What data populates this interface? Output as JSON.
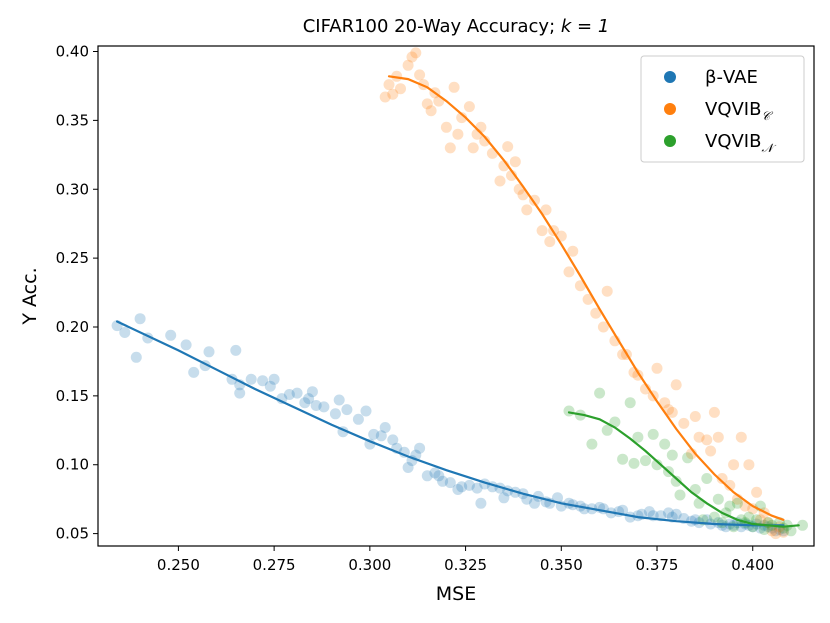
{
  "chart_data": {
    "type": "scatter",
    "title": "CIFAR100 20-Way Accuracy; ",
    "title_math": "k = 1",
    "xlabel": "MSE",
    "ylabel": "Y Acc.",
    "xlim": [
      0.229,
      0.416
    ],
    "ylim": [
      0.041,
      0.404
    ],
    "xticks": [
      0.25,
      0.275,
      0.3,
      0.325,
      0.35,
      0.375,
      0.4
    ],
    "xtick_labels": [
      "0.250",
      "0.275",
      "0.300",
      "0.325",
      "0.350",
      "0.375",
      "0.400"
    ],
    "yticks": [
      0.05,
      0.1,
      0.15,
      0.2,
      0.25,
      0.3,
      0.35,
      0.4
    ],
    "ytick_labels": [
      "0.05",
      "0.10",
      "0.15",
      "0.20",
      "0.25",
      "0.30",
      "0.35",
      "0.40"
    ],
    "legend_position": "top-right",
    "series": [
      {
        "name": "β-VAE",
        "legend_main": "β-VAE",
        "legend_sub": "",
        "color": "#1f77b4",
        "points": [
          [
            0.234,
            0.201
          ],
          [
            0.236,
            0.196
          ],
          [
            0.239,
            0.178
          ],
          [
            0.24,
            0.206
          ],
          [
            0.242,
            0.192
          ],
          [
            0.248,
            0.194
          ],
          [
            0.252,
            0.187
          ],
          [
            0.254,
            0.167
          ],
          [
            0.257,
            0.172
          ],
          [
            0.258,
            0.182
          ],
          [
            0.264,
            0.162
          ],
          [
            0.265,
            0.183
          ],
          [
            0.266,
            0.158
          ],
          [
            0.266,
            0.152
          ],
          [
            0.269,
            0.162
          ],
          [
            0.272,
            0.161
          ],
          [
            0.274,
            0.157
          ],
          [
            0.275,
            0.162
          ],
          [
            0.277,
            0.148
          ],
          [
            0.279,
            0.151
          ],
          [
            0.281,
            0.152
          ],
          [
            0.283,
            0.145
          ],
          [
            0.284,
            0.148
          ],
          [
            0.285,
            0.153
          ],
          [
            0.286,
            0.143
          ],
          [
            0.288,
            0.142
          ],
          [
            0.291,
            0.137
          ],
          [
            0.292,
            0.147
          ],
          [
            0.293,
            0.124
          ],
          [
            0.294,
            0.14
          ],
          [
            0.297,
            0.133
          ],
          [
            0.299,
            0.139
          ],
          [
            0.3,
            0.115
          ],
          [
            0.301,
            0.122
          ],
          [
            0.303,
            0.121
          ],
          [
            0.304,
            0.127
          ],
          [
            0.306,
            0.118
          ],
          [
            0.307,
            0.112
          ],
          [
            0.309,
            0.109
          ],
          [
            0.31,
            0.098
          ],
          [
            0.311,
            0.103
          ],
          [
            0.312,
            0.107
          ],
          [
            0.313,
            0.112
          ],
          [
            0.315,
            0.092
          ],
          [
            0.317,
            0.094
          ],
          [
            0.318,
            0.092
          ],
          [
            0.319,
            0.088
          ],
          [
            0.321,
            0.087
          ],
          [
            0.323,
            0.082
          ],
          [
            0.324,
            0.084
          ],
          [
            0.326,
            0.085
          ],
          [
            0.328,
            0.083
          ],
          [
            0.329,
            0.072
          ],
          [
            0.33,
            0.086
          ],
          [
            0.332,
            0.084
          ],
          [
            0.334,
            0.083
          ],
          [
            0.335,
            0.076
          ],
          [
            0.336,
            0.081
          ],
          [
            0.338,
            0.08
          ],
          [
            0.34,
            0.079
          ],
          [
            0.341,
            0.075
          ],
          [
            0.343,
            0.072
          ],
          [
            0.344,
            0.077
          ],
          [
            0.346,
            0.073
          ],
          [
            0.347,
            0.072
          ],
          [
            0.349,
            0.076
          ],
          [
            0.35,
            0.07
          ],
          [
            0.352,
            0.072
          ],
          [
            0.353,
            0.071
          ],
          [
            0.355,
            0.07
          ],
          [
            0.356,
            0.068
          ],
          [
            0.358,
            0.068
          ],
          [
            0.36,
            0.069
          ],
          [
            0.361,
            0.068
          ],
          [
            0.363,
            0.065
          ],
          [
            0.365,
            0.066
          ],
          [
            0.366,
            0.067
          ],
          [
            0.368,
            0.062
          ],
          [
            0.37,
            0.063
          ],
          [
            0.371,
            0.064
          ],
          [
            0.373,
            0.066
          ],
          [
            0.374,
            0.063
          ],
          [
            0.376,
            0.063
          ],
          [
            0.378,
            0.065
          ],
          [
            0.379,
            0.062
          ],
          [
            0.38,
            0.064
          ],
          [
            0.382,
            0.061
          ],
          [
            0.384,
            0.059
          ],
          [
            0.385,
            0.06
          ],
          [
            0.386,
            0.058
          ],
          [
            0.388,
            0.06
          ],
          [
            0.389,
            0.057
          ],
          [
            0.391,
            0.058
          ],
          [
            0.392,
            0.056
          ],
          [
            0.393,
            0.055
          ],
          [
            0.394,
            0.057
          ],
          [
            0.395,
            0.056
          ],
          [
            0.396,
            0.058
          ],
          [
            0.397,
            0.055
          ],
          [
            0.398,
            0.057
          ],
          [
            0.399,
            0.056
          ],
          [
            0.4,
            0.055
          ],
          [
            0.401,
            0.057
          ],
          [
            0.402,
            0.054
          ],
          [
            0.403,
            0.056
          ],
          [
            0.404,
            0.055
          ],
          [
            0.405,
            0.054
          ],
          [
            0.406,
            0.052
          ],
          [
            0.407,
            0.053
          ],
          [
            0.408,
            0.052
          ]
        ],
        "fit": [
          [
            0.234,
            0.204
          ],
          [
            0.25,
            0.183
          ],
          [
            0.26,
            0.169
          ],
          [
            0.27,
            0.155
          ],
          [
            0.28,
            0.142
          ],
          [
            0.29,
            0.129
          ],
          [
            0.3,
            0.117
          ],
          [
            0.31,
            0.106
          ],
          [
            0.32,
            0.096
          ],
          [
            0.33,
            0.087
          ],
          [
            0.34,
            0.079
          ],
          [
            0.35,
            0.072
          ],
          [
            0.36,
            0.067
          ],
          [
            0.37,
            0.062
          ],
          [
            0.38,
            0.059
          ],
          [
            0.39,
            0.057
          ],
          [
            0.4,
            0.056
          ],
          [
            0.408,
            0.056
          ]
        ]
      },
      {
        "name": "VQVIB_C",
        "legend_main": "VQVIB",
        "legend_sub": "𝒞",
        "color": "#ff7f0e",
        "points": [
          [
            0.304,
            0.367
          ],
          [
            0.305,
            0.376
          ],
          [
            0.306,
            0.369
          ],
          [
            0.307,
            0.382
          ],
          [
            0.308,
            0.373
          ],
          [
            0.31,
            0.39
          ],
          [
            0.311,
            0.396
          ],
          [
            0.312,
            0.399
          ],
          [
            0.313,
            0.383
          ],
          [
            0.314,
            0.376
          ],
          [
            0.315,
            0.362
          ],
          [
            0.316,
            0.357
          ],
          [
            0.317,
            0.37
          ],
          [
            0.318,
            0.364
          ],
          [
            0.32,
            0.345
          ],
          [
            0.321,
            0.33
          ],
          [
            0.322,
            0.374
          ],
          [
            0.323,
            0.34
          ],
          [
            0.324,
            0.352
          ],
          [
            0.326,
            0.36
          ],
          [
            0.327,
            0.33
          ],
          [
            0.328,
            0.34
          ],
          [
            0.329,
            0.345
          ],
          [
            0.33,
            0.335
          ],
          [
            0.332,
            0.326
          ],
          [
            0.334,
            0.306
          ],
          [
            0.335,
            0.317
          ],
          [
            0.336,
            0.331
          ],
          [
            0.337,
            0.31
          ],
          [
            0.338,
            0.32
          ],
          [
            0.339,
            0.3
          ],
          [
            0.34,
            0.296
          ],
          [
            0.341,
            0.285
          ],
          [
            0.343,
            0.292
          ],
          [
            0.345,
            0.27
          ],
          [
            0.346,
            0.285
          ],
          [
            0.347,
            0.262
          ],
          [
            0.348,
            0.27
          ],
          [
            0.35,
            0.266
          ],
          [
            0.352,
            0.24
          ],
          [
            0.353,
            0.255
          ],
          [
            0.355,
            0.23
          ],
          [
            0.357,
            0.22
          ],
          [
            0.359,
            0.21
          ],
          [
            0.361,
            0.2
          ],
          [
            0.362,
            0.226
          ],
          [
            0.364,
            0.19
          ],
          [
            0.366,
            0.18
          ],
          [
            0.367,
            0.18
          ],
          [
            0.369,
            0.167
          ],
          [
            0.37,
            0.165
          ],
          [
            0.372,
            0.155
          ],
          [
            0.374,
            0.15
          ],
          [
            0.375,
            0.17
          ],
          [
            0.377,
            0.145
          ],
          [
            0.378,
            0.14
          ],
          [
            0.379,
            0.138
          ],
          [
            0.38,
            0.158
          ],
          [
            0.382,
            0.13
          ],
          [
            0.384,
            0.108
          ],
          [
            0.385,
            0.135
          ],
          [
            0.386,
            0.12
          ],
          [
            0.388,
            0.118
          ],
          [
            0.389,
            0.11
          ],
          [
            0.39,
            0.138
          ],
          [
            0.391,
            0.12
          ],
          [
            0.392,
            0.09
          ],
          [
            0.394,
            0.085
          ],
          [
            0.395,
            0.1
          ],
          [
            0.396,
            0.075
          ],
          [
            0.397,
            0.12
          ],
          [
            0.398,
            0.07
          ],
          [
            0.399,
            0.1
          ],
          [
            0.4,
            0.068
          ],
          [
            0.401,
            0.08
          ],
          [
            0.402,
            0.06
          ],
          [
            0.403,
            0.065
          ],
          [
            0.404,
            0.058
          ],
          [
            0.405,
            0.052
          ],
          [
            0.406,
            0.05
          ],
          [
            0.407,
            0.055
          ],
          [
            0.408,
            0.051
          ]
        ],
        "fit": [
          [
            0.305,
            0.382
          ],
          [
            0.31,
            0.38
          ],
          [
            0.315,
            0.374
          ],
          [
            0.32,
            0.364
          ],
          [
            0.325,
            0.352
          ],
          [
            0.33,
            0.338
          ],
          [
            0.335,
            0.321
          ],
          [
            0.34,
            0.302
          ],
          [
            0.345,
            0.282
          ],
          [
            0.35,
            0.26
          ],
          [
            0.355,
            0.237
          ],
          [
            0.36,
            0.213
          ],
          [
            0.365,
            0.19
          ],
          [
            0.37,
            0.167
          ],
          [
            0.375,
            0.146
          ],
          [
            0.38,
            0.126
          ],
          [
            0.385,
            0.108
          ],
          [
            0.39,
            0.093
          ],
          [
            0.395,
            0.08
          ],
          [
            0.4,
            0.07
          ],
          [
            0.405,
            0.063
          ],
          [
            0.408,
            0.06
          ]
        ]
      },
      {
        "name": "VQVIB_N",
        "legend_main": "VQVIB",
        "legend_sub": "𝒩",
        "color": "#2ca02c",
        "points": [
          [
            0.352,
            0.139
          ],
          [
            0.355,
            0.136
          ],
          [
            0.358,
            0.115
          ],
          [
            0.36,
            0.152
          ],
          [
            0.362,
            0.125
          ],
          [
            0.364,
            0.131
          ],
          [
            0.366,
            0.104
          ],
          [
            0.368,
            0.145
          ],
          [
            0.369,
            0.101
          ],
          [
            0.37,
            0.12
          ],
          [
            0.372,
            0.103
          ],
          [
            0.374,
            0.122
          ],
          [
            0.375,
            0.1
          ],
          [
            0.377,
            0.115
          ],
          [
            0.378,
            0.095
          ],
          [
            0.379,
            0.107
          ],
          [
            0.38,
            0.088
          ],
          [
            0.381,
            0.078
          ],
          [
            0.383,
            0.105
          ],
          [
            0.385,
            0.082
          ],
          [
            0.386,
            0.072
          ],
          [
            0.387,
            0.06
          ],
          [
            0.388,
            0.09
          ],
          [
            0.39,
            0.062
          ],
          [
            0.391,
            0.075
          ],
          [
            0.392,
            0.058
          ],
          [
            0.393,
            0.065
          ],
          [
            0.394,
            0.07
          ],
          [
            0.395,
            0.055
          ],
          [
            0.396,
            0.072
          ],
          [
            0.397,
            0.06
          ],
          [
            0.398,
            0.058
          ],
          [
            0.399,
            0.062
          ],
          [
            0.4,
            0.055
          ],
          [
            0.401,
            0.06
          ],
          [
            0.402,
            0.07
          ],
          [
            0.403,
            0.053
          ],
          [
            0.404,
            0.058
          ],
          [
            0.405,
            0.056
          ],
          [
            0.407,
            0.058
          ],
          [
            0.408,
            0.054
          ],
          [
            0.409,
            0.056
          ],
          [
            0.41,
            0.052
          ],
          [
            0.413,
            0.056
          ]
        ],
        "fit": [
          [
            0.352,
            0.138
          ],
          [
            0.356,
            0.136
          ],
          [
            0.36,
            0.133
          ],
          [
            0.364,
            0.127
          ],
          [
            0.368,
            0.119
          ],
          [
            0.372,
            0.11
          ],
          [
            0.376,
            0.1
          ],
          [
            0.38,
            0.09
          ],
          [
            0.384,
            0.08
          ],
          [
            0.388,
            0.072
          ],
          [
            0.392,
            0.065
          ],
          [
            0.396,
            0.06
          ],
          [
            0.4,
            0.057
          ],
          [
            0.404,
            0.056
          ],
          [
            0.408,
            0.055
          ],
          [
            0.412,
            0.056
          ]
        ]
      }
    ]
  }
}
